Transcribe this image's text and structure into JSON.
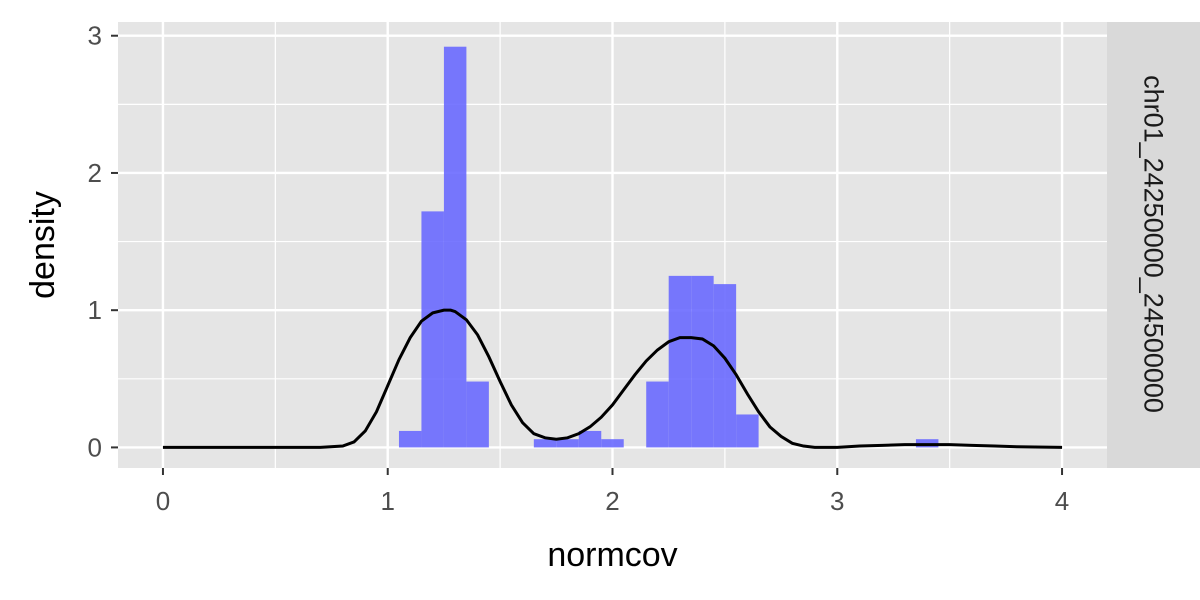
{
  "chart_data": {
    "type": "bar",
    "subtype": "histogram-with-density",
    "xlabel": "normcov",
    "ylabel": "density",
    "facet_label": "chr01_24250000_24500000",
    "xlim": [
      -0.2,
      4.2
    ],
    "ylim": [
      -0.15,
      3.1
    ],
    "x_ticks": [
      0,
      1,
      2,
      3,
      4
    ],
    "x_tick_labels": [
      "0",
      "1",
      "2",
      "3",
      "4"
    ],
    "y_ticks": [
      0,
      1,
      2,
      3
    ],
    "y_tick_labels": [
      "0",
      "1",
      "2",
      "3"
    ],
    "grid": true,
    "histogram": {
      "bin_width": 0.1,
      "color": "#6666FF",
      "bins": [
        {
          "x0": 1.05,
          "x1": 1.15,
          "density": 0.12
        },
        {
          "x0": 1.15,
          "x1": 1.25,
          "density": 1.72
        },
        {
          "x0": 1.25,
          "x1": 1.35,
          "density": 2.92
        },
        {
          "x0": 1.35,
          "x1": 1.45,
          "density": 0.48
        },
        {
          "x0": 1.65,
          "x1": 1.75,
          "density": 0.06
        },
        {
          "x0": 1.75,
          "x1": 1.85,
          "density": 0.06
        },
        {
          "x0": 1.85,
          "x1": 1.95,
          "density": 0.12
        },
        {
          "x0": 1.95,
          "x1": 2.05,
          "density": 0.06
        },
        {
          "x0": 2.15,
          "x1": 2.25,
          "density": 0.48
        },
        {
          "x0": 2.25,
          "x1": 2.35,
          "density": 1.25
        },
        {
          "x0": 2.35,
          "x1": 2.45,
          "density": 1.25
        },
        {
          "x0": 2.45,
          "x1": 2.55,
          "density": 1.19
        },
        {
          "x0": 2.55,
          "x1": 2.65,
          "density": 0.24
        },
        {
          "x0": 3.35,
          "x1": 3.45,
          "density": 0.06
        }
      ]
    },
    "density_curve": {
      "color": "#000000",
      "x": [
        0,
        0.5,
        0.7,
        0.8,
        0.85,
        0.9,
        0.95,
        1.0,
        1.05,
        1.1,
        1.15,
        1.2,
        1.25,
        1.28,
        1.3,
        1.35,
        1.4,
        1.45,
        1.5,
        1.55,
        1.6,
        1.65,
        1.7,
        1.75,
        1.8,
        1.85,
        1.9,
        1.95,
        2.0,
        2.05,
        2.1,
        2.15,
        2.2,
        2.25,
        2.3,
        2.35,
        2.4,
        2.45,
        2.5,
        2.55,
        2.6,
        2.65,
        2.7,
        2.75,
        2.8,
        2.85,
        2.9,
        3.0,
        3.1,
        3.2,
        3.3,
        3.4,
        3.5,
        3.6,
        3.7,
        3.8,
        4.0
      ],
      "y": [
        0,
        0,
        0,
        0.01,
        0.04,
        0.12,
        0.26,
        0.45,
        0.64,
        0.8,
        0.92,
        0.98,
        1.0,
        1.0,
        0.99,
        0.93,
        0.82,
        0.66,
        0.48,
        0.31,
        0.18,
        0.1,
        0.07,
        0.06,
        0.07,
        0.1,
        0.15,
        0.22,
        0.31,
        0.42,
        0.53,
        0.63,
        0.71,
        0.77,
        0.8,
        0.8,
        0.79,
        0.74,
        0.65,
        0.53,
        0.39,
        0.26,
        0.15,
        0.08,
        0.03,
        0.01,
        0.0,
        0.0,
        0.01,
        0.015,
        0.02,
        0.02,
        0.02,
        0.015,
        0.01,
        0.005,
        0
      ]
    }
  }
}
